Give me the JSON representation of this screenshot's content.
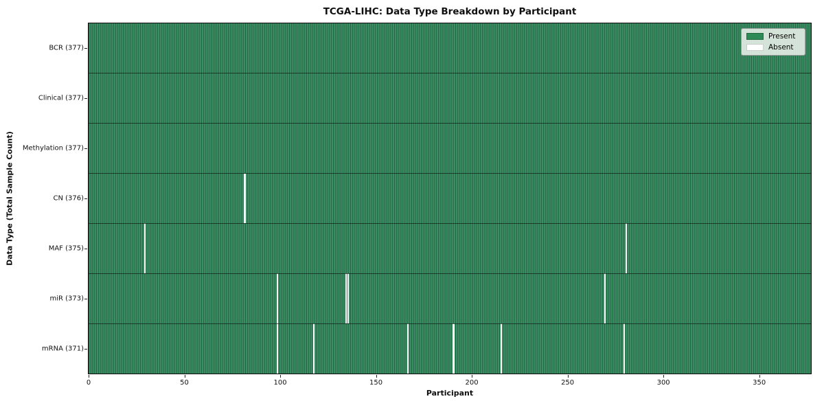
{
  "chart_data": {
    "type": "heatmap",
    "title": "TCGA-LIHC: Data Type Breakdown by Participant",
    "xlabel": "Participant",
    "ylabel": "Data Type (Total Sample Count)",
    "n_participants": 377,
    "xlim": [
      0,
      377
    ],
    "x_ticks": [
      0,
      50,
      100,
      150,
      200,
      250,
      300,
      350
    ],
    "grid": true,
    "legend": {
      "position": "upper-right",
      "items": [
        {
          "name": "present",
          "label": "Present",
          "color": "#2e8b57"
        },
        {
          "name": "absent",
          "label": "Absent",
          "color": "#ffffff"
        }
      ]
    },
    "rows": [
      {
        "label": "BCR (377)",
        "data_type": "BCR",
        "present_count": 377,
        "absent_participants": []
      },
      {
        "label": "Clinical (377)",
        "data_type": "Clinical",
        "present_count": 377,
        "absent_participants": []
      },
      {
        "label": "Methylation (377)",
        "data_type": "Methylation",
        "present_count": 377,
        "absent_participants": []
      },
      {
        "label": "CN (376)",
        "data_type": "CN",
        "present_count": 376,
        "absent_participants": [
          81
        ]
      },
      {
        "label": "MAF (375)",
        "data_type": "MAF",
        "present_count": 375,
        "absent_participants": [
          29,
          280
        ]
      },
      {
        "label": "miR (373)",
        "data_type": "miR",
        "present_count": 373,
        "absent_participants": [
          98,
          134,
          135,
          269
        ]
      },
      {
        "label": "mRNA (371)",
        "data_type": "mRNA",
        "present_count": 371,
        "absent_participants": [
          98,
          117,
          166,
          190,
          215,
          279
        ]
      }
    ],
    "colors": {
      "present": "#2e8b57",
      "absent": "#ffffff",
      "cell_fill": "#3e9366",
      "cell_edge": "#235c42",
      "row_divider": "#1c3a2a"
    }
  }
}
